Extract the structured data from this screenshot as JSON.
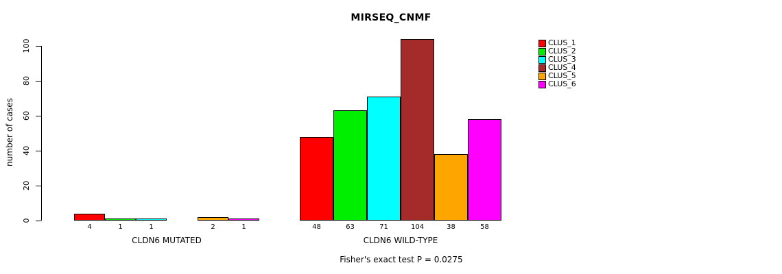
{
  "title": "MIRSEQ_CNMF",
  "footer": "Fisher's exact test P = 0.0275",
  "chart_data": {
    "type": "bar",
    "title": "MIRSEQ_CNMF",
    "xlabel": "",
    "ylabel": "number of cases",
    "ylim": [
      0,
      100
    ],
    "yticks": [
      0,
      20,
      40,
      60,
      80,
      100
    ],
    "grid": false,
    "legend_position": "top-right",
    "legend": [
      {
        "label": "CLUS_1",
        "color": "#FF0000"
      },
      {
        "label": "CLUS_2",
        "color": "#00EE00"
      },
      {
        "label": "CLUS_3",
        "color": "#00FFFF"
      },
      {
        "label": "CLUS_4",
        "color": "#A52A2A"
      },
      {
        "label": "CLUS_5",
        "color": "#FFA500"
      },
      {
        "label": "CLUS_6",
        "color": "#FF00FF"
      }
    ],
    "groups": [
      {
        "label": "CLDN6 MUTATED",
        "values": [
          4,
          1,
          1,
          0,
          2,
          1
        ],
        "bar_labels": [
          "4",
          "1",
          "1",
          "",
          "2",
          "1"
        ]
      },
      {
        "label": "CLDN6 WILD-TYPE",
        "values": [
          48,
          63,
          71,
          104,
          38,
          58
        ],
        "bar_labels": [
          "48",
          "63",
          "71",
          "104",
          "38",
          "58"
        ]
      }
    ],
    "annotation": "Fisher's exact test P = 0.0275"
  }
}
